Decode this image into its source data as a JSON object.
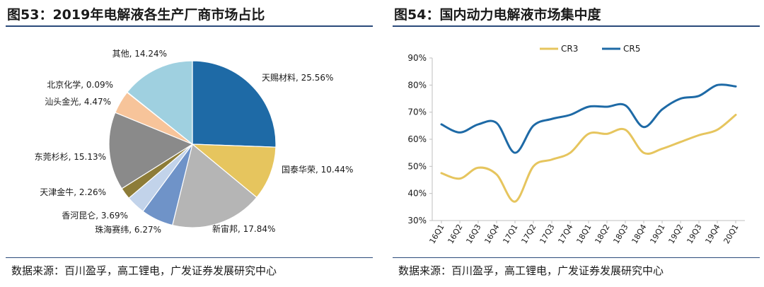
{
  "left": {
    "title": "图53：2019年电解液各生产厂商市场占比",
    "source": "数据来源：百川盈孚，高工锂电，广发证券发展研究中心"
  },
  "right": {
    "title": "图54：国内动力电解液市场集中度",
    "source": "数据来源：百川盈孚，高工锂电，广发证券发展研究中心"
  },
  "chart_data": [
    {
      "type": "pie",
      "title": "2019年电解液各生产厂商市场占比",
      "slices": [
        {
          "name": "天赐材料",
          "value": 25.56,
          "label": "天赐材料, 25.56%",
          "color": "#1e6aa6"
        },
        {
          "name": "国泰华荣",
          "value": 10.44,
          "label": "国泰华荣, 10.44%",
          "color": "#e6c55e"
        },
        {
          "name": "新宙邦",
          "value": 17.84,
          "label": "新宙邦, 17.84%",
          "color": "#b5b5b5"
        },
        {
          "name": "珠海赛纬",
          "value": 6.27,
          "label": "珠海赛纬, 6.27%",
          "color": "#6f93c8"
        },
        {
          "name": "香河昆仑",
          "value": 3.69,
          "label": "香河昆仑, 3.69%",
          "color": "#c2d3ea"
        },
        {
          "name": "天津金牛",
          "value": 2.26,
          "label": "天津金牛, 2.26%",
          "color": "#8d7c38"
        },
        {
          "name": "东莞杉杉",
          "value": 15.13,
          "label": "东莞杉杉, 15.13%",
          "color": "#8a8a8a"
        },
        {
          "name": "汕头金光",
          "value": 4.47,
          "label": "汕头金光, 4.47%",
          "color": "#f7c49a"
        },
        {
          "name": "北京化学",
          "value": 0.09,
          "label": "北京化学, 0.09%",
          "color": "#2d5a8a"
        },
        {
          "name": "其他",
          "value": 14.24,
          "label": "其他, 14.24%",
          "color": "#9fd0e0"
        }
      ]
    },
    {
      "type": "line",
      "title": "国内动力电解液市场集中度",
      "categories": [
        "16Q1",
        "16Q2",
        "16Q3",
        "16Q4",
        "17Q1",
        "17Q2",
        "17Q3",
        "17Q4",
        "18Q1",
        "18Q2",
        "18Q3",
        "18Q4",
        "19Q1",
        "19Q2",
        "19Q3",
        "19Q4",
        "20Q1"
      ],
      "series": [
        {
          "name": "CR3",
          "color": "#e6c55e",
          "values": [
            47.5,
            45.5,
            49.5,
            47,
            37,
            50,
            52.5,
            55,
            62,
            62,
            63.5,
            55,
            56.5,
            59,
            61.5,
            63.5,
            69
          ]
        },
        {
          "name": "CR5",
          "color": "#1e6aa6",
          "values": [
            65.5,
            62.5,
            65.5,
            66,
            55,
            65,
            67.5,
            69,
            72,
            72,
            72.5,
            64.5,
            71,
            75,
            76,
            80,
            79.5
          ]
        }
      ],
      "yticks": [
        "30%",
        "40%",
        "50%",
        "60%",
        "70%",
        "80%",
        "90%"
      ],
      "ylim": [
        30,
        90
      ],
      "legend_position": "top"
    }
  ]
}
